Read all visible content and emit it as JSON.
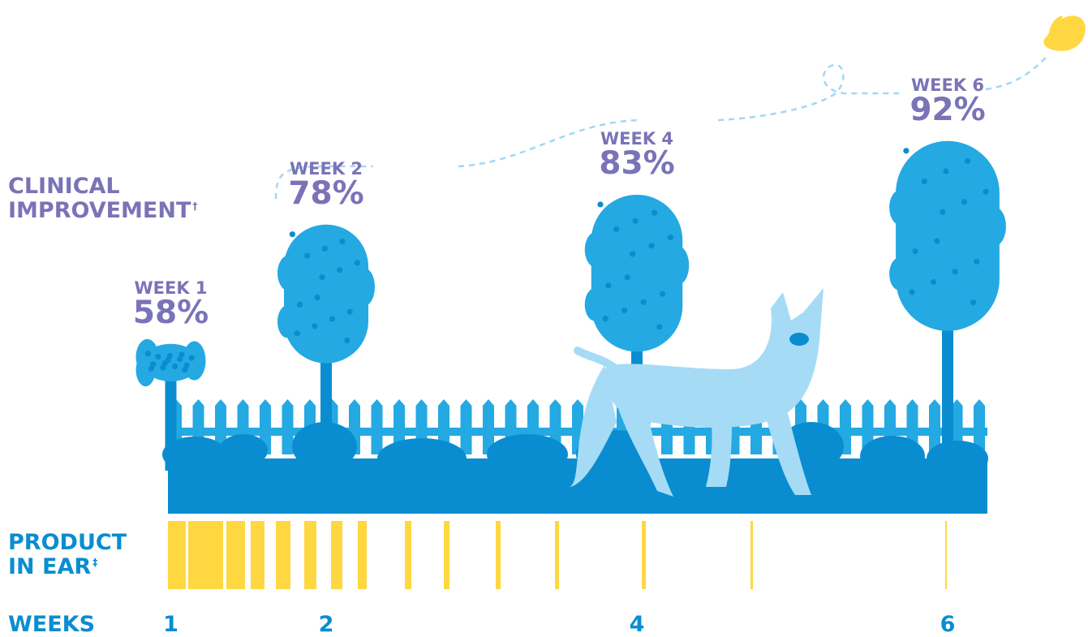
{
  "labels": {
    "clinical_line1": "CLINICAL",
    "clinical_line2": "IMPROVEMENT",
    "clinical_mark": "†",
    "product_line1": "PRODUCT",
    "product_line2": "IN EAR",
    "product_mark": "‡",
    "weeks": "WEEKS"
  },
  "colors": {
    "purple": "#7a73b7",
    "blue_dark": "#0a8dd0",
    "tree": "#24a9e3",
    "dog": "#a6dbf6",
    "yellow": "#ffd740"
  },
  "chart_data": {
    "type": "bar",
    "series": [
      {
        "points": [
          {
            "label": "WEEK 1",
            "week": 1,
            "value": 58,
            "display": "58%"
          },
          {
            "label": "WEEK 2",
            "week": 2,
            "value": 78,
            "display": "78%"
          },
          {
            "label": "WEEK 4",
            "week": 4,
            "value": 83,
            "display": "83%"
          },
          {
            "label": "WEEK 6",
            "week": 6,
            "value": 92,
            "display": "92%"
          }
        ]
      }
    ],
    "x_ticks": [
      "1",
      "2",
      "4",
      "6"
    ],
    "x_tick_values": [
      1,
      2,
      4,
      6
    ],
    "xlim": [
      0,
      6.5
    ],
    "ylim": [
      0,
      100
    ]
  }
}
